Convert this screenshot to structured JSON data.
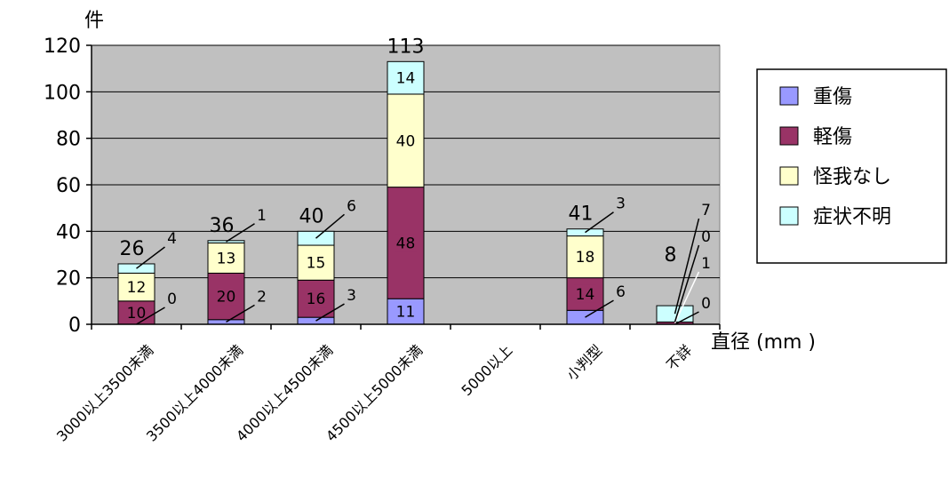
{
  "chart_data": {
    "type": "bar",
    "stacked": true,
    "title": "",
    "ylabel": "件",
    "xlabel": "直径 (mm )",
    "ylim": [
      0,
      120
    ],
    "yticks": [
      0,
      20,
      40,
      60,
      80,
      100,
      120
    ],
    "grid": true,
    "legend_position": "right",
    "categories": [
      "3000以上3500未満",
      "3500以上4000未満",
      "4000以上4500未満",
      "4500以上5000未満",
      "5000以上",
      "小判型",
      "不詳"
    ],
    "series": [
      {
        "name": "重傷",
        "color": "#9999ff",
        "values": [
          0,
          2,
          3,
          11,
          0,
          6,
          0
        ]
      },
      {
        "name": "軽傷",
        "color": "#993366",
        "values": [
          10,
          20,
          16,
          48,
          0,
          14,
          1
        ]
      },
      {
        "name": "怪我なし",
        "color": "#ffffcc",
        "values": [
          12,
          13,
          15,
          40,
          0,
          18,
          0
        ]
      },
      {
        "name": "症状不明",
        "color": "#ccffff",
        "values": [
          4,
          1,
          6,
          14,
          0,
          3,
          7
        ]
      }
    ],
    "totals": [
      26,
      36,
      40,
      113,
      null,
      41,
      8
    ]
  },
  "colors": {
    "plot_background": "#c0c0c0",
    "gridline": "#000000"
  }
}
